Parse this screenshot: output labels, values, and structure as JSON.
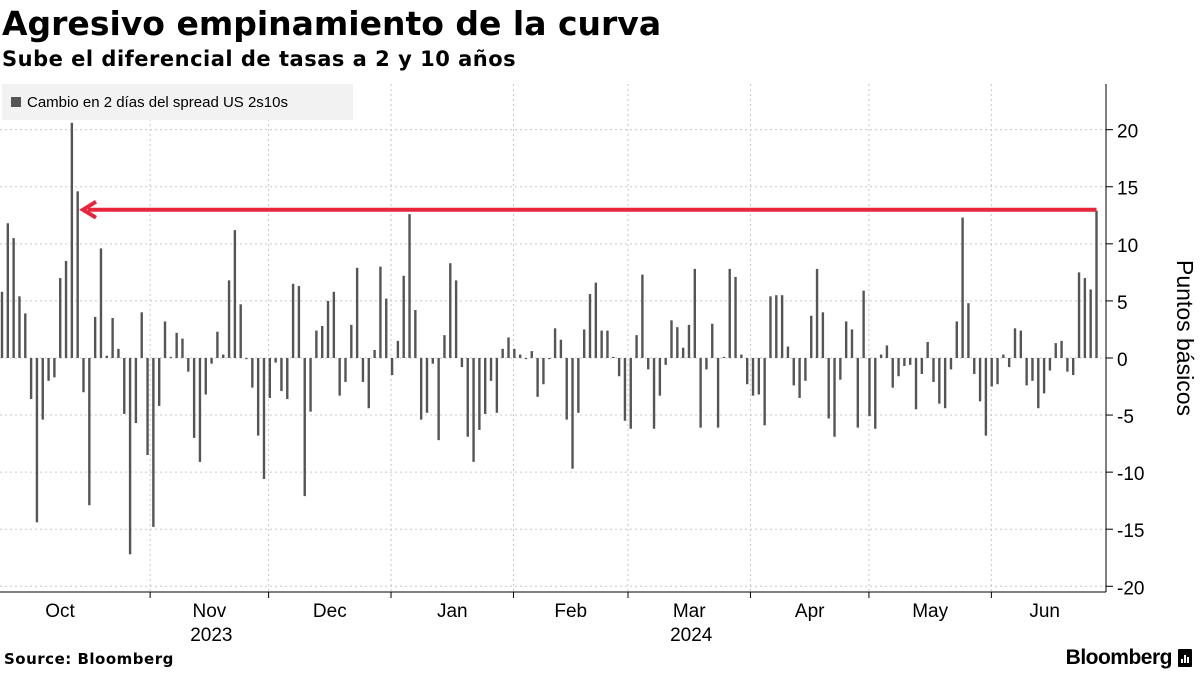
{
  "header": {
    "title": "Agresivo empinamiento de la curva",
    "subtitle": "Sube el diferencial de tasas a 2 y 10 años"
  },
  "footer": {
    "source": "Source: Bloomberg",
    "brand": "Bloomberg"
  },
  "colors": {
    "bar": "#555555",
    "annotation_arrow": "#e8253a",
    "grid": "#c8c8c8"
  },
  "chart_data": {
    "type": "bar",
    "title": "Agresivo empinamiento de la curva",
    "subtitle": "Sube el diferencial de tasas a 2 y 10 años",
    "legend": [
      "Cambio en 2 días del spread US 2s10s"
    ],
    "legend_position": "top-left",
    "ylabel": "Puntos básicos",
    "y_axis_side": "right",
    "ylim": [
      -20.5,
      24
    ],
    "yticks": [
      20,
      15,
      10,
      5,
      0,
      -5,
      -10,
      -15,
      -20
    ],
    "grid": true,
    "x_date_range": [
      "2023-09-25",
      "2024-06-28"
    ],
    "month_ticks": [
      "Oct",
      "Nov",
      "Dec",
      "Jan",
      "Feb",
      "Mar",
      "Apr",
      "May",
      "Jun"
    ],
    "year_labels": [
      {
        "label": "2023",
        "under_month": "Nov"
      },
      {
        "label": "2024",
        "under_month": "Mar"
      }
    ],
    "annotation": {
      "type": "arrow",
      "value": 12.9,
      "from_date": "2024-06-28",
      "to_date": "2023-10-10",
      "meaning": "latest change is the largest since October 2023"
    },
    "series": [
      {
        "name": "Cambio en 2 días del spread US 2s10s",
        "start_date": "2023-09-25",
        "values": [
          5.8,
          11.8,
          10.5,
          5.4,
          3.9,
          -3.6,
          -14.4,
          -5.4,
          -2.0,
          -1.7,
          7.0,
          8.5,
          20.6,
          14.6,
          -3.0,
          -12.9,
          3.6,
          9.6,
          0.2,
          3.5,
          0.8,
          -4.9,
          -17.2,
          -5.7,
          4.0,
          -8.5,
          -14.8,
          -4.2,
          3.2,
          0.1,
          2.2,
          1.7,
          -1.2,
          -7.0,
          -9.1,
          -3.2,
          -0.5,
          2.3,
          0.3,
          6.8,
          11.2,
          4.7,
          -0.1,
          -2.6,
          -6.8,
          -10.6,
          -3.5,
          -0.4,
          -2.9,
          -3.6,
          6.5,
          6.3,
          -12.1,
          -4.7,
          2.4,
          2.8,
          5.0,
          5.8,
          -3.3,
          -2.1,
          2.9,
          7.9,
          -2.1,
          -4.4,
          0.7,
          8.0,
          5.2,
          -1.5,
          1.5,
          7.2,
          12.6,
          4.2,
          -5.4,
          -4.8,
          -0.5,
          -7.2,
          2.0,
          8.3,
          6.8,
          -0.8,
          -6.9,
          -9.1,
          -6.3,
          -4.9,
          -2.0,
          -4.8,
          0.8,
          1.8,
          0.8,
          0.3,
          -0.1,
          0.6,
          -3.4,
          -2.3,
          -0.1,
          2.6,
          1.6,
          -5.4,
          -9.7,
          -4.8,
          2.5,
          5.6,
          6.6,
          2.4,
          2.4,
          0.1,
          -1.6,
          -5.5,
          -6.2,
          2.0,
          7.3,
          -1.0,
          -6.2,
          -3.3,
          -0.6,
          3.3,
          2.7,
          0.9,
          2.9,
          7.8,
          -6.1,
          -1.0,
          3.0,
          -6.1,
          0.1,
          7.8,
          7.1,
          0.3,
          -2.3,
          -3.3,
          -3.2,
          -5.9,
          5.4,
          5.5,
          5.5,
          1.0,
          -2.4,
          -3.5,
          -2.0,
          3.7,
          7.8,
          4.0,
          -5.3,
          -6.9,
          -1.9,
          3.2,
          2.5,
          -6.1,
          5.9,
          -5.1,
          -6.2,
          0.3,
          1.1,
          -2.6,
          -1.6,
          -0.7,
          -0.6,
          -4.5,
          -1.4,
          1.4,
          -2.1,
          -4.0,
          -4.4,
          -1.0,
          3.2,
          12.3,
          4.8,
          -1.4,
          -3.8,
          -6.8,
          -2.5,
          -2.3,
          0.3,
          -0.8,
          2.6,
          2.4,
          -2.4,
          -2.0,
          -4.4,
          -3.1,
          -1.1,
          1.3,
          1.5,
          -1.2,
          -1.5,
          7.5,
          7.0,
          6.0,
          12.9
        ]
      }
    ]
  }
}
